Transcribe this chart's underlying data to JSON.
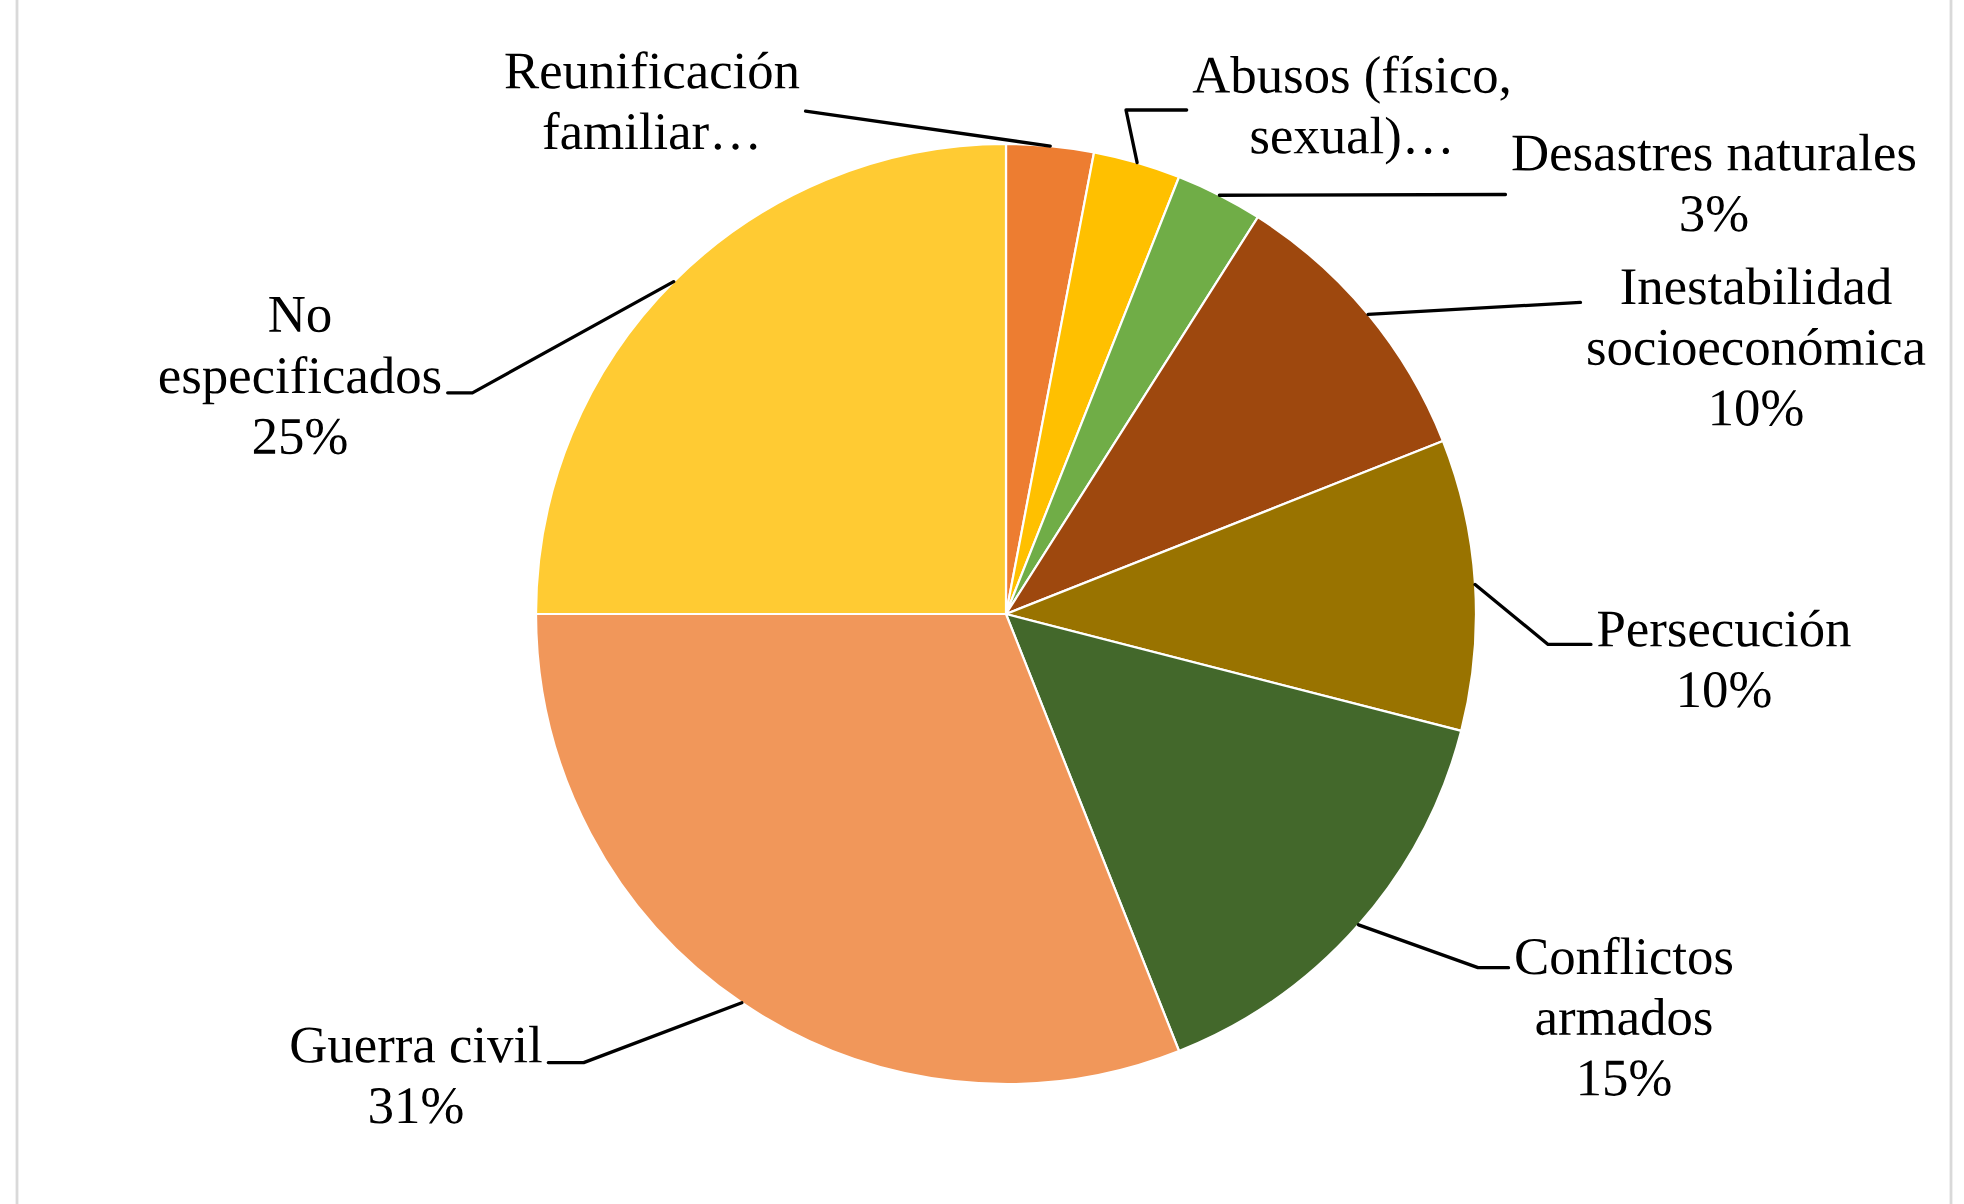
{
  "chart_data": {
    "type": "pie",
    "categories": [
      "Reunificación familiar…",
      "Abusos (físico, sexual)…",
      "Desastres naturales",
      "Inestabilidad socioeconómica",
      "Persecución",
      "Conflictos armados",
      "Guerra civil",
      "No especificados"
    ],
    "values": [
      3,
      3,
      3,
      10,
      10,
      15,
      31,
      25
    ],
    "colors": [
      "#ed7d31",
      "#ffc000",
      "#70ad47",
      "#9e480e",
      "#997300",
      "#43682b",
      "#f1975a",
      "#ffcb33"
    ],
    "value_labels": [
      null,
      null,
      "3%",
      "10%",
      "10%",
      "15%",
      "31%",
      "25%"
    ]
  }
}
